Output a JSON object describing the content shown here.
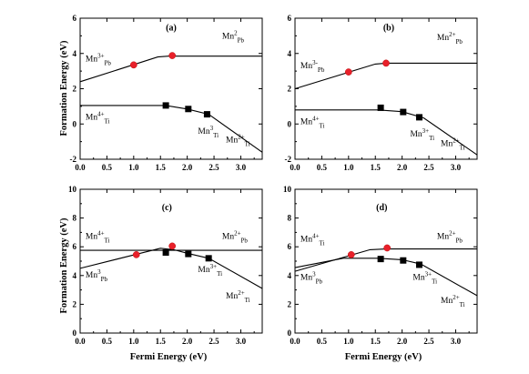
{
  "xlabel": "Fermi Energy (eV)",
  "ylabel": "Formation Energy (eV)",
  "chart_data": [
    {
      "type": "line",
      "panel": "(a)",
      "xlim": [
        0,
        3.4
      ],
      "ylim": [
        -2,
        6
      ],
      "xticks": [
        "0.0",
        "0.5",
        "1.0",
        "1.5",
        "2.0",
        "2.5",
        "3.0"
      ],
      "yticks": [
        "-2",
        "0",
        "2",
        "4",
        "6"
      ],
      "series": [
        {
          "x": [
            0,
            1.45,
            1.65,
            3.4
          ],
          "y": [
            2.4,
            3.8,
            3.85,
            3.85
          ]
        },
        {
          "x": [
            0,
            1.6,
            2.0,
            2.4,
            3.4
          ],
          "y": [
            1.05,
            1.05,
            0.85,
            0.55,
            -1.6
          ]
        }
      ],
      "circles": [
        {
          "x": 1.0,
          "y": 3.35
        },
        {
          "x": 1.72,
          "y": 3.88
        }
      ],
      "squares": [
        {
          "x": 1.6,
          "y": 1.05
        },
        {
          "x": 2.02,
          "y": 0.85
        },
        {
          "x": 2.37,
          "y": 0.55
        }
      ],
      "annotations": [
        {
          "label": "(a)",
          "x": 1.7,
          "y": 5.3,
          "kind": "panel"
        },
        {
          "base": "Mn",
          "sup": "2",
          "sub": "Pb",
          "x": 2.65,
          "y": 4.85
        },
        {
          "base": "Mn",
          "sup": "3+",
          "sub": "Pb",
          "x": 0.1,
          "y": 3.55
        },
        {
          "base": "Mn",
          "sup": "4+",
          "sub": "Ti",
          "x": 0.1,
          "y": 0.25
        },
        {
          "base": "Mn",
          "sup": "3",
          "sub": "Ti",
          "x": 2.2,
          "y": -0.55
        },
        {
          "base": "Mn",
          "sup": "2+",
          "sub": "Ti",
          "x": 2.72,
          "y": -1.05
        }
      ]
    },
    {
      "type": "line",
      "panel": "(b)",
      "xlim": [
        0,
        3.4
      ],
      "ylim": [
        -2,
        6
      ],
      "xticks": [
        "0.0",
        "0.5",
        "1.0",
        "1.5",
        "2.0",
        "2.5",
        "3.0"
      ],
      "yticks": [
        "-2",
        "0",
        "2",
        "4",
        "6"
      ],
      "series": [
        {
          "x": [
            0,
            1.5,
            1.7,
            3.4
          ],
          "y": [
            2.0,
            3.4,
            3.45,
            3.45
          ]
        },
        {
          "x": [
            0,
            1.55,
            2.0,
            2.4,
            3.4
          ],
          "y": [
            0.8,
            0.8,
            0.7,
            0.35,
            -1.75
          ]
        }
      ],
      "circles": [
        {
          "x": 1.0,
          "y": 2.95
        },
        {
          "x": 1.7,
          "y": 3.45
        }
      ],
      "squares": [
        {
          "x": 1.6,
          "y": 0.92
        },
        {
          "x": 2.02,
          "y": 0.68
        },
        {
          "x": 2.32,
          "y": 0.38
        }
      ],
      "annotations": [
        {
          "label": "(b)",
          "x": 1.75,
          "y": 5.3,
          "kind": "panel"
        },
        {
          "base": "Mn",
          "sup": "2+",
          "sub": "Pb",
          "x": 2.65,
          "y": 4.75
        },
        {
          "base": "Mn",
          "sup": "3-",
          "sub": "Pb",
          "x": 0.1,
          "y": 3.15
        },
        {
          "base": "Mn",
          "sup": "4+",
          "sub": "Ti",
          "x": 0.1,
          "y": 0.0
        },
        {
          "base": "Mn",
          "sup": "3+",
          "sub": "Ti",
          "x": 2.15,
          "y": -0.7
        },
        {
          "base": "Mn",
          "sup": "2+",
          "sub": "Ti",
          "x": 2.72,
          "y": -1.25
        }
      ]
    },
    {
      "type": "line",
      "panel": "(c)",
      "xlim": [
        0,
        3.4
      ],
      "ylim": [
        0,
        10
      ],
      "xticks": [
        "0.0",
        "0.5",
        "1.0",
        "1.5",
        "2.0",
        "2.5",
        "3.0"
      ],
      "yticks": [
        "0",
        "2",
        "4",
        "6",
        "8",
        "10"
      ],
      "series": [
        {
          "x": [
            0,
            3.4
          ],
          "y": [
            5.75,
            5.75
          ]
        },
        {
          "x": [
            0,
            1.5,
            1.75,
            2.0,
            2.4,
            3.4
          ],
          "y": [
            4.5,
            5.9,
            5.8,
            5.55,
            5.2,
            3.1
          ]
        }
      ],
      "circles": [
        {
          "x": 1.05,
          "y": 5.45
        },
        {
          "x": 1.72,
          "y": 6.05
        }
      ],
      "squares": [
        {
          "x": 1.6,
          "y": 5.6
        },
        {
          "x": 2.02,
          "y": 5.5
        },
        {
          "x": 2.4,
          "y": 5.2
        }
      ],
      "annotations": [
        {
          "label": "(c)",
          "x": 1.62,
          "y": 8.55,
          "kind": "panel"
        },
        {
          "base": "Mn",
          "sup": "4+",
          "sub": "Ti",
          "x": 0.1,
          "y": 6.55
        },
        {
          "base": "Mn",
          "sup": "2+",
          "sub": "Pb",
          "x": 2.65,
          "y": 6.55
        },
        {
          "base": "Mn",
          "sup": "3",
          "sub": "Pb",
          "x": 0.1,
          "y": 3.85
        },
        {
          "base": "Mn",
          "sup": "3+",
          "sub": "Ti",
          "x": 2.2,
          "y": 4.25
        },
        {
          "base": "Mn",
          "sup": "2+",
          "sub": "Ti",
          "x": 2.72,
          "y": 2.4
        }
      ]
    },
    {
      "type": "line",
      "panel": "(d)",
      "xlim": [
        0,
        3.4
      ],
      "ylim": [
        0,
        10
      ],
      "xticks": [
        "0.0",
        "0.5",
        "1.0",
        "1.5",
        "2.0",
        "2.5",
        "3.0"
      ],
      "yticks": [
        "0",
        "2",
        "4",
        "6",
        "8",
        "10"
      ],
      "series": [
        {
          "x": [
            0,
            1.4,
            1.7,
            3.4
          ],
          "y": [
            4.3,
            5.8,
            5.85,
            5.85
          ]
        },
        {
          "x": [
            0,
            0.9,
            1.55,
            2.0,
            2.35,
            3.4
          ],
          "y": [
            4.55,
            5.2,
            5.2,
            5.1,
            4.8,
            2.6
          ]
        }
      ],
      "circles": [
        {
          "x": 1.05,
          "y": 5.45
        },
        {
          "x": 1.72,
          "y": 5.92
        }
      ],
      "squares": [
        {
          "x": 1.6,
          "y": 5.15
        },
        {
          "x": 2.02,
          "y": 5.05
        },
        {
          "x": 2.32,
          "y": 4.75
        }
      ],
      "annotations": [
        {
          "label": "(d)",
          "x": 1.62,
          "y": 8.55,
          "kind": "panel"
        },
        {
          "base": "Mn",
          "sup": "4+",
          "sub": "Ti",
          "x": 0.1,
          "y": 6.35
        },
        {
          "base": "Mn",
          "sup": "2+",
          "sub": "Pb",
          "x": 2.65,
          "y": 6.55
        },
        {
          "base": "Mn",
          "sup": "3",
          "sub": "Pb",
          "x": 0.1,
          "y": 3.7
        },
        {
          "base": "Mn",
          "sup": "3+",
          "sub": "Ti",
          "x": 2.2,
          "y": 3.7
        },
        {
          "base": "Mn",
          "sup": "2+",
          "sub": "Ti",
          "x": 2.72,
          "y": 2.1
        }
      ]
    }
  ]
}
